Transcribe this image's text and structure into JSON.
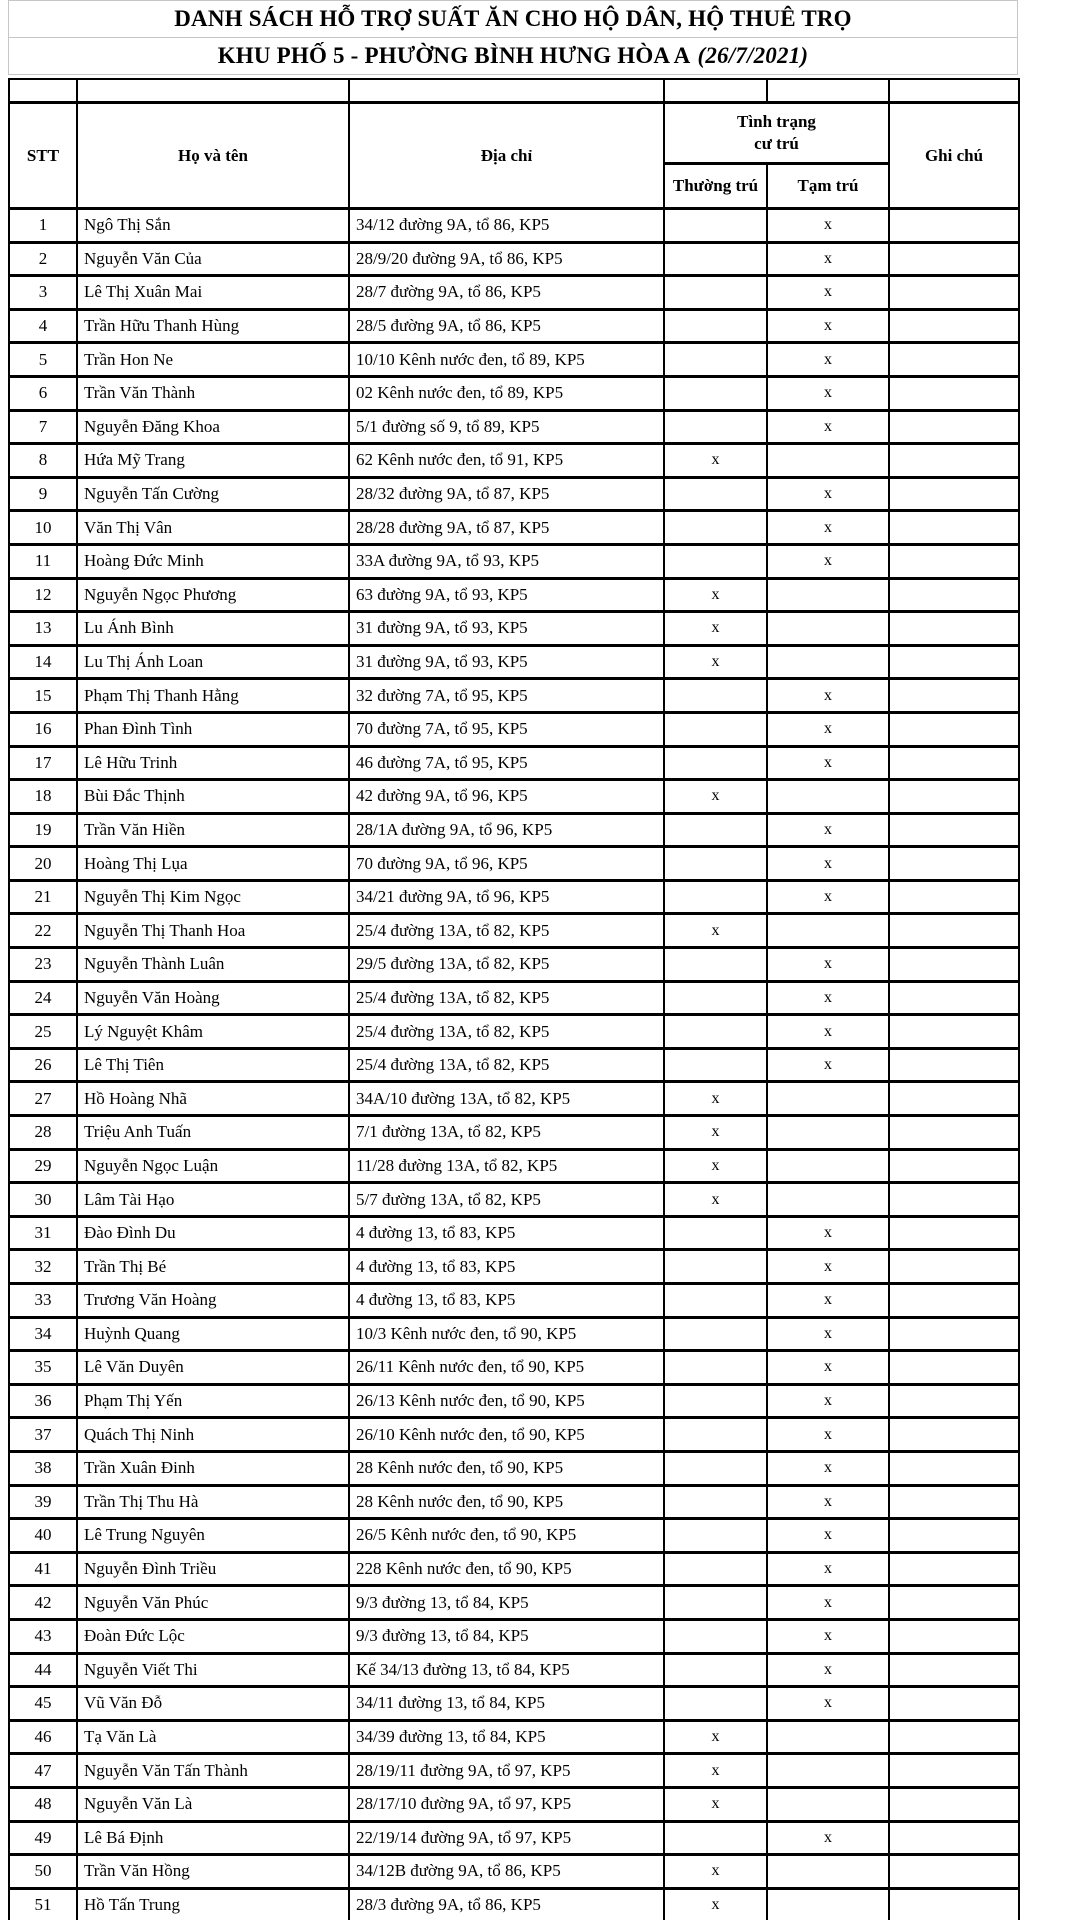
{
  "title": {
    "line1": "DANH SÁCH HỖ TRỢ SUẤT ĂN CHO HỘ DÂN, HỘ THUÊ TRỌ",
    "line2_prefix": "KHU PHỐ 5 - PHƯỜNG BÌNH HƯNG HÒA A",
    "line2_date": "(26/7/2021)"
  },
  "table": {
    "headers": {
      "stt": "STT",
      "name": "Họ và tên",
      "address": "Địa chỉ",
      "residence": "Tình trạng cư trú",
      "permanent": "Thường trú",
      "temporary": "Tạm trú",
      "note": "Ghi chú"
    },
    "check_mark": "x",
    "rows": [
      {
        "stt": "1",
        "name": "Ngô Thị Sắn",
        "address": "34/12 đường 9A, tổ 86, KP5",
        "residence": "tam",
        "note": ""
      },
      {
        "stt": "2",
        "name": "Nguyễn Văn Của",
        "address": "28/9/20 đường 9A, tổ 86, KP5",
        "residence": "tam",
        "note": ""
      },
      {
        "stt": "3",
        "name": "Lê Thị Xuân Mai",
        "address": "28/7 đường 9A, tổ 86, KP5",
        "residence": "tam",
        "note": ""
      },
      {
        "stt": "4",
        "name": "Trần Hữu Thanh Hùng",
        "address": "28/5 đường 9A, tổ 86, KP5",
        "residence": "tam",
        "note": ""
      },
      {
        "stt": "5",
        "name": "Trần Hon Ne",
        "address": "10/10 Kênh nước đen, tổ 89, KP5",
        "residence": "tam",
        "note": ""
      },
      {
        "stt": "6",
        "name": "Trần Văn Thành",
        "address": "02 Kênh nước đen, tổ 89, KP5",
        "residence": "tam",
        "note": ""
      },
      {
        "stt": "7",
        "name": "Nguyễn Đăng Khoa",
        "address": "5/1 đường số 9, tổ 89, KP5",
        "residence": "tam",
        "note": ""
      },
      {
        "stt": "8",
        "name": "Hứa Mỹ Trang",
        "address": "62 Kênh nước đen, tổ 91, KP5",
        "residence": "thuong",
        "note": ""
      },
      {
        "stt": "9",
        "name": "Nguyễn Tấn Cường",
        "address": "28/32 đường 9A, tổ 87, KP5",
        "residence": "tam",
        "note": ""
      },
      {
        "stt": "10",
        "name": "Văn Thị Vân",
        "address": "28/28 đường 9A, tổ 87, KP5",
        "residence": "tam",
        "note": ""
      },
      {
        "stt": "11",
        "name": "Hoàng Đức Minh",
        "address": "33A đường 9A, tổ 93, KP5",
        "residence": "tam",
        "note": ""
      },
      {
        "stt": "12",
        "name": "Nguyễn Ngọc Phương",
        "address": "63 đường 9A, tổ 93, KP5",
        "residence": "thuong",
        "note": ""
      },
      {
        "stt": "13",
        "name": "Lu Ánh Bình",
        "address": "31 đường 9A, tổ 93, KP5",
        "residence": "thuong",
        "note": ""
      },
      {
        "stt": "14",
        "name": "Lu Thị Ánh Loan",
        "address": "31 đường 9A, tổ 93, KP5",
        "residence": "thuong",
        "note": ""
      },
      {
        "stt": "15",
        "name": "Phạm Thị Thanh Hằng",
        "address": "32 đường 7A, tổ 95, KP5",
        "residence": "tam",
        "note": ""
      },
      {
        "stt": "16",
        "name": "Phan Đình Tình",
        "address": "70 đường 7A, tổ 95, KP5",
        "residence": "tam",
        "note": ""
      },
      {
        "stt": "17",
        "name": "Lê Hữu Trinh",
        "address": "46 đường 7A, tổ 95, KP5",
        "residence": "tam",
        "note": ""
      },
      {
        "stt": "18",
        "name": "Bùi Đắc Thịnh",
        "address": "42 đường 9A, tổ 96, KP5",
        "residence": "thuong",
        "note": ""
      },
      {
        "stt": "19",
        "name": "Trần Văn Hiền",
        "address": "28/1A đường 9A, tổ 96, KP5",
        "residence": "tam",
        "note": ""
      },
      {
        "stt": "20",
        "name": "Hoàng Thị Lụa",
        "address": "70 đường 9A, tổ 96, KP5",
        "residence": "tam",
        "note": ""
      },
      {
        "stt": "21",
        "name": "Nguyễn Thị Kim Ngọc",
        "address": "34/21 đường 9A, tổ 96, KP5",
        "residence": "tam",
        "note": ""
      },
      {
        "stt": "22",
        "name": "Nguyễn Thị Thanh Hoa",
        "address": "25/4 đường 13A, tổ 82, KP5",
        "residence": "thuong",
        "note": ""
      },
      {
        "stt": "23",
        "name": "Nguyễn Thành Luân",
        "address": "29/5 đường 13A, tổ 82, KP5",
        "residence": "tam",
        "note": ""
      },
      {
        "stt": "24",
        "name": "Nguyễn Văn Hoàng",
        "address": "25/4 đường 13A, tổ 82, KP5",
        "residence": "tam",
        "note": ""
      },
      {
        "stt": "25",
        "name": "Lý Nguyệt Khâm",
        "address": "25/4 đường 13A, tổ 82, KP5",
        "residence": "tam",
        "note": ""
      },
      {
        "stt": "26",
        "name": "Lê Thị Tiên",
        "address": "25/4 đường 13A, tổ 82, KP5",
        "residence": "tam",
        "note": ""
      },
      {
        "stt": "27",
        "name": "Hồ Hoàng Nhã",
        "address": "34A/10 đường 13A, tổ 82, KP5",
        "residence": "thuong",
        "note": ""
      },
      {
        "stt": "28",
        "name": "Triệu Anh Tuấn",
        "address": "7/1 đường 13A, tổ 82, KP5",
        "residence": "thuong",
        "note": ""
      },
      {
        "stt": "29",
        "name": "Nguyễn Ngọc Luận",
        "address": "11/28 đường 13A, tổ 82, KP5",
        "residence": "thuong",
        "note": ""
      },
      {
        "stt": "30",
        "name": "Lâm Tài Hạo",
        "address": "5/7 đường 13A, tổ 82, KP5",
        "residence": "thuong",
        "note": ""
      },
      {
        "stt": "31",
        "name": "Đào Đình Du",
        "address": "4 đường 13, tổ 83, KP5",
        "residence": "tam",
        "note": ""
      },
      {
        "stt": "32",
        "name": "Trần Thị Bé",
        "address": "4 đường 13, tổ 83, KP5",
        "residence": "tam",
        "note": ""
      },
      {
        "stt": "33",
        "name": "Trương Văn Hoàng",
        "address": "4 đường 13, tổ 83, KP5",
        "residence": "tam",
        "note": ""
      },
      {
        "stt": "34",
        "name": "Huỳnh Quang",
        "address": "10/3 Kênh nước đen, tổ 90, KP5",
        "residence": "tam",
        "note": ""
      },
      {
        "stt": "35",
        "name": "Lê Văn Duyên",
        "address": "26/11 Kênh nước đen, tổ 90, KP5",
        "residence": "tam",
        "note": ""
      },
      {
        "stt": "36",
        "name": "Phạm Thị Yến",
        "address": "26/13 Kênh nước đen, tổ 90, KP5",
        "residence": "tam",
        "note": ""
      },
      {
        "stt": "37",
        "name": "Quách Thị Ninh",
        "address": "26/10 Kênh nước đen, tổ 90, KP5",
        "residence": "tam",
        "note": ""
      },
      {
        "stt": "38",
        "name": "Trần Xuân Đinh",
        "address": "28 Kênh nước đen, tổ 90, KP5",
        "residence": "tam",
        "note": ""
      },
      {
        "stt": "39",
        "name": "Trần Thị Thu Hà",
        "address": "28 Kênh nước đen, tổ 90, KP5",
        "residence": "tam",
        "note": ""
      },
      {
        "stt": "40",
        "name": "Lê Trung Nguyên",
        "address": "26/5 Kênh nước đen, tổ 90, KP5",
        "residence": "tam",
        "note": ""
      },
      {
        "stt": "41",
        "name": "Nguyễn Đình Triều",
        "address": "228 Kênh nước đen, tổ 90, KP5",
        "residence": "tam",
        "note": ""
      },
      {
        "stt": "42",
        "name": "Nguyễn Văn Phúc",
        "address": "9/3 đường 13, tổ 84, KP5",
        "residence": "tam",
        "note": ""
      },
      {
        "stt": "43",
        "name": "Đoàn Đức Lộc",
        "address": "9/3 đường 13, tổ 84, KP5",
        "residence": "tam",
        "note": ""
      },
      {
        "stt": "44",
        "name": "Nguyễn Viết Thi",
        "address": "Kế 34/13 đường 13, tổ 84, KP5",
        "residence": "tam",
        "note": ""
      },
      {
        "stt": "45",
        "name": "Vũ Văn Đỗ",
        "address": "34/11 đường 13, tổ 84, KP5",
        "residence": "tam",
        "note": ""
      },
      {
        "stt": "46",
        "name": "Tạ Văn Là",
        "address": "34/39 đường 13, tổ 84, KP5",
        "residence": "thuong",
        "note": ""
      },
      {
        "stt": "47",
        "name": "Nguyễn Văn Tấn Thành",
        "address": "28/19/11 đường 9A, tổ 97, KP5",
        "residence": "thuong",
        "note": ""
      },
      {
        "stt": "48",
        "name": "Nguyễn Văn Là",
        "address": "28/17/10 đường 9A, tổ 97, KP5",
        "residence": "thuong",
        "note": ""
      },
      {
        "stt": "49",
        "name": "Lê Bá Định",
        "address": "22/19/14 đường 9A, tổ 97, KP5",
        "residence": "tam",
        "note": ""
      },
      {
        "stt": "50",
        "name": "Trần Văn Hồng",
        "address": "34/12B đường 9A, tổ 86, KP5",
        "residence": "thuong",
        "note": ""
      },
      {
        "stt": "51",
        "name": "Hồ Tấn Trung",
        "address": "28/3 đường 9A, tổ 86, KP5",
        "residence": "thuong",
        "note": ""
      }
    ]
  }
}
